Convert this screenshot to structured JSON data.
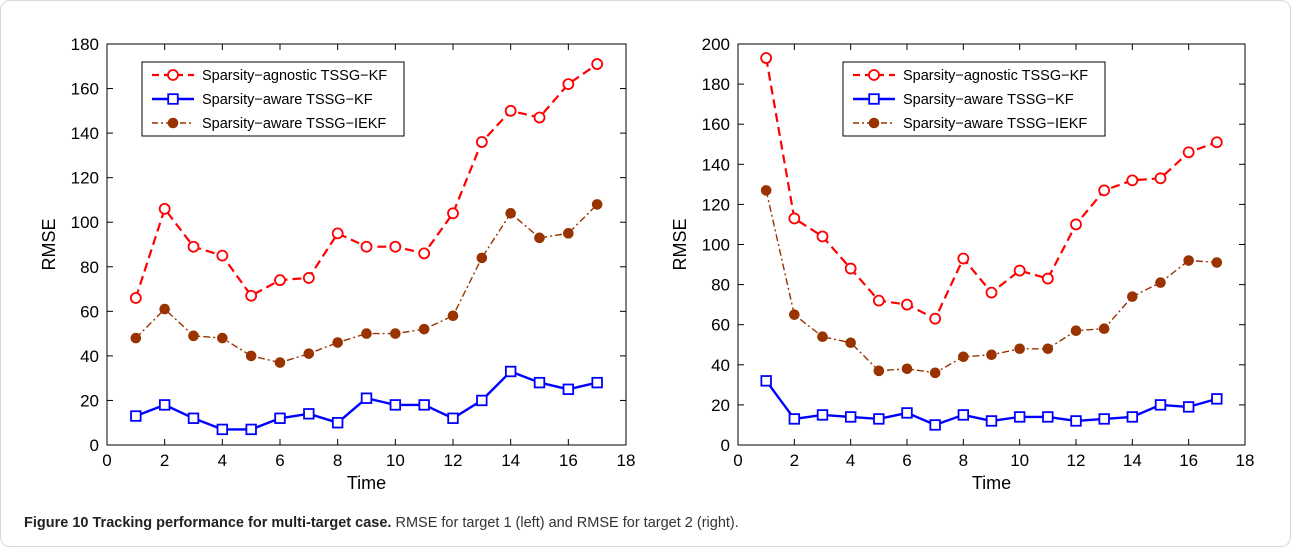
{
  "figure": {
    "caption_label": "Figure 10",
    "caption_title": "Tracking performance for multi-target case.",
    "caption_text": "RMSE for target 1 (left) and RMSE for target 2 (right)."
  },
  "colors": {
    "agnostic": "#ff0000",
    "aware_kf": "#0000ff",
    "aware_iekf": "#993300"
  },
  "chart_data": [
    {
      "type": "line",
      "xlabel": "Time",
      "ylabel": "RMSE",
      "xlim": [
        0,
        18
      ],
      "ylim": [
        0,
        180
      ],
      "xticks": [
        0,
        2,
        4,
        6,
        8,
        10,
        12,
        14,
        16,
        18
      ],
      "yticks": [
        0,
        20,
        40,
        60,
        80,
        100,
        120,
        140,
        160,
        180
      ],
      "grid": false,
      "legend": "top-left",
      "x": [
        1,
        2,
        3,
        4,
        5,
        6,
        7,
        8,
        9,
        10,
        11,
        12,
        13,
        14,
        15,
        16,
        17
      ],
      "series": [
        {
          "name": "Sparsity−agnostic TSSG−KF",
          "values": [
            66,
            106,
            89,
            85,
            67,
            74,
            75,
            95,
            89,
            89,
            86,
            104,
            136,
            150,
            147,
            162,
            171
          ]
        },
        {
          "name": "Sparsity−aware TSSG−KF",
          "values": [
            13,
            18,
            12,
            7,
            7,
            12,
            14,
            10,
            21,
            18,
            18,
            12,
            20,
            33,
            28,
            25,
            28
          ]
        },
        {
          "name": "Sparsity−aware TSSG−IEKF",
          "values": [
            48,
            61,
            49,
            48,
            40,
            37,
            41,
            46,
            50,
            50,
            52,
            58,
            84,
            104,
            93,
            95,
            108
          ]
        }
      ]
    },
    {
      "type": "line",
      "xlabel": "Time",
      "ylabel": "RMSE",
      "xlim": [
        0,
        18
      ],
      "ylim": [
        0,
        200
      ],
      "xticks": [
        0,
        2,
        4,
        6,
        8,
        10,
        12,
        14,
        16,
        18
      ],
      "yticks": [
        0,
        20,
        40,
        60,
        80,
        100,
        120,
        140,
        160,
        180,
        200
      ],
      "grid": false,
      "legend": "top-center",
      "x": [
        1,
        2,
        3,
        4,
        5,
        6,
        7,
        8,
        9,
        10,
        11,
        12,
        13,
        14,
        15,
        16,
        17
      ],
      "series": [
        {
          "name": "Sparsity−agnostic TSSG−KF",
          "values": [
            193,
            113,
            104,
            88,
            72,
            70,
            63,
            93,
            76,
            87,
            83,
            110,
            127,
            132,
            133,
            146,
            151
          ]
        },
        {
          "name": "Sparsity−aware TSSG−KF",
          "values": [
            32,
            13,
            15,
            14,
            13,
            16,
            10,
            15,
            12,
            14,
            14,
            12,
            13,
            14,
            20,
            19,
            23
          ]
        },
        {
          "name": "Sparsity−aware TSSG−IEKF",
          "values": [
            127,
            65,
            54,
            51,
            37,
            38,
            36,
            44,
            45,
            48,
            48,
            57,
            58,
            74,
            81,
            92,
            91
          ]
        }
      ]
    }
  ]
}
